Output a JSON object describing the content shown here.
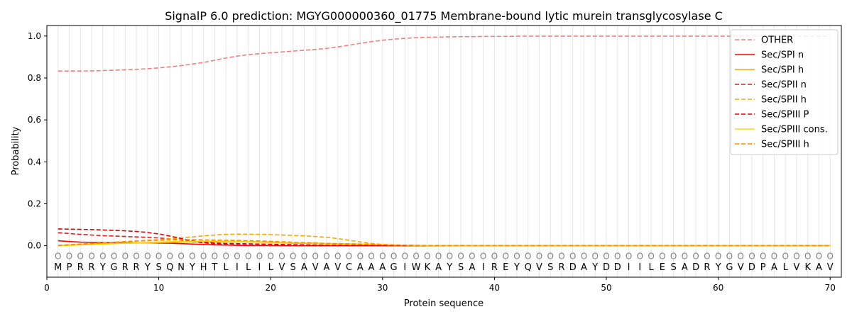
{
  "chart_data": {
    "type": "line",
    "title": "SignalP 6.0 prediction: MGYG000000360_01775 Membrane-bound lytic murein transglycosylase C",
    "xlabel": "Protein sequence",
    "ylabel": "Probability",
    "xlim": [
      0,
      71
    ],
    "ylim": [
      -0.15,
      1.05
    ],
    "xticks": [
      0,
      10,
      20,
      30,
      40,
      50,
      60,
      70
    ],
    "yticks": [
      0.0,
      0.2,
      0.4,
      0.6,
      0.8,
      1.0
    ],
    "grid": "vertical-per-residue",
    "legend_position": "top-right",
    "sequence": [
      "M",
      "P",
      "R",
      "R",
      "Y",
      "G",
      "R",
      "R",
      "Y",
      "S",
      "Q",
      "N",
      "Y",
      "H",
      "T",
      "L",
      "I",
      "L",
      "I",
      "L",
      "V",
      "S",
      "A",
      "V",
      "A",
      "V",
      "C",
      "A",
      "A",
      "A",
      "G",
      "I",
      "W",
      "K",
      "A",
      "Y",
      "S",
      "A",
      "I",
      "R",
      "E",
      "Y",
      "Q",
      "V",
      "S",
      "R",
      "D",
      "A",
      "Y",
      "D",
      "D",
      "I",
      "I",
      "L",
      "E",
      "S",
      "A",
      "D",
      "R",
      "Y",
      "G",
      "V",
      "D",
      "P",
      "A",
      "L",
      "V",
      "K",
      "A",
      "V"
    ],
    "region_labels": [
      "O",
      "O",
      "O",
      "O",
      "O",
      "O",
      "O",
      "O",
      "O",
      "O",
      "O",
      "O",
      "O",
      "O",
      "O",
      "O",
      "O",
      "O",
      "O",
      "O",
      "O",
      "O",
      "O",
      "O",
      "O",
      "O",
      "O",
      "O",
      "O",
      "O",
      "O",
      "O",
      "O",
      "O",
      "O",
      "O",
      "O",
      "O",
      "O",
      "O",
      "O",
      "O",
      "O",
      "O",
      "O",
      "O",
      "O",
      "O",
      "O",
      "O",
      "O",
      "O",
      "O",
      "O",
      "O",
      "O",
      "O",
      "O",
      "O",
      "O",
      "O",
      "O",
      "O",
      "O",
      "O",
      "O",
      "O",
      "O",
      "O",
      "O"
    ],
    "series": [
      {
        "name": "OTHER",
        "color": "#f08080",
        "dash": "dashed",
        "values": [
          0.833,
          0.833,
          0.833,
          0.834,
          0.835,
          0.837,
          0.839,
          0.841,
          0.844,
          0.848,
          0.853,
          0.859,
          0.866,
          0.874,
          0.884,
          0.895,
          0.904,
          0.911,
          0.916,
          0.92,
          0.924,
          0.928,
          0.932,
          0.936,
          0.941,
          0.948,
          0.956,
          0.965,
          0.973,
          0.98,
          0.985,
          0.989,
          0.992,
          0.994,
          0.995,
          0.996,
          0.997,
          0.997,
          0.998,
          0.998,
          0.998,
          0.999,
          0.999,
          0.999,
          0.999,
          0.999,
          0.999,
          0.999,
          0.999,
          0.999,
          0.999,
          0.999,
          0.999,
          0.999,
          0.999,
          0.999,
          0.999,
          0.999,
          0.999,
          0.999,
          0.999,
          0.999,
          0.999,
          0.999,
          0.999,
          0.999,
          0.999,
          0.999,
          0.999,
          0.999
        ]
      },
      {
        "name": "Sec/SPI n",
        "color": "#ff0000",
        "dash": "solid",
        "values": [
          0.024,
          0.02,
          0.017,
          0.016,
          0.015,
          0.015,
          0.015,
          0.014,
          0.014,
          0.013,
          0.012,
          0.01,
          0.008,
          0.006,
          0.004,
          0.003,
          0.002,
          0.001,
          0.001,
          0.001,
          0,
          0,
          0,
          0,
          0,
          0,
          0,
          0,
          0,
          0,
          0,
          0,
          0,
          0,
          0,
          0,
          0,
          0,
          0,
          0,
          0,
          0,
          0,
          0,
          0,
          0,
          0,
          0,
          0,
          0,
          0,
          0,
          0,
          0,
          0,
          0,
          0,
          0,
          0,
          0,
          0,
          0,
          0,
          0,
          0,
          0,
          0,
          0,
          0,
          0
        ]
      },
      {
        "name": "Sec/SPI h",
        "color": "#ffa500",
        "dash": "solid",
        "values": [
          0.001,
          0.003,
          0.005,
          0.007,
          0.009,
          0.011,
          0.012,
          0.013,
          0.014,
          0.015,
          0.016,
          0.017,
          0.018,
          0.019,
          0.019,
          0.019,
          0.019,
          0.018,
          0.017,
          0.016,
          0.014,
          0.012,
          0.011,
          0.01,
          0.009,
          0.008,
          0.007,
          0.006,
          0.005,
          0.004,
          0.003,
          0.002,
          0.001,
          0.001,
          0.001,
          0,
          0,
          0,
          0,
          0,
          0,
          0,
          0,
          0,
          0,
          0,
          0,
          0,
          0,
          0,
          0,
          0,
          0,
          0,
          0,
          0,
          0,
          0,
          0,
          0,
          0,
          0,
          0,
          0,
          0,
          0,
          0,
          0,
          0,
          0
        ]
      },
      {
        "name": "Sec/SPII n",
        "color": "#e41a1c",
        "dash": "dashed",
        "values": [
          0.062,
          0.058,
          0.054,
          0.051,
          0.048,
          0.046,
          0.044,
          0.042,
          0.04,
          0.037,
          0.033,
          0.027,
          0.02,
          0.014,
          0.009,
          0.006,
          0.004,
          0.003,
          0.002,
          0.001,
          0.001,
          0,
          0,
          0,
          0,
          0,
          0,
          0,
          0,
          0,
          0,
          0,
          0,
          0,
          0,
          0,
          0,
          0,
          0,
          0,
          0,
          0,
          0,
          0,
          0,
          0,
          0,
          0,
          0,
          0,
          0,
          0,
          0,
          0,
          0,
          0,
          0,
          0,
          0,
          0,
          0,
          0,
          0,
          0,
          0,
          0,
          0,
          0,
          0,
          0
        ]
      },
      {
        "name": "Sec/SPII h",
        "color": "#ffa500",
        "dash": "dashed",
        "values": [
          0.002,
          0.005,
          0.008,
          0.011,
          0.014,
          0.017,
          0.02,
          0.023,
          0.026,
          0.029,
          0.033,
          0.037,
          0.042,
          0.047,
          0.051,
          0.054,
          0.055,
          0.055,
          0.054,
          0.053,
          0.051,
          0.049,
          0.047,
          0.044,
          0.04,
          0.034,
          0.026,
          0.018,
          0.011,
          0.006,
          0.003,
          0.002,
          0.001,
          0,
          0,
          0,
          0,
          0,
          0,
          0,
          0,
          0,
          0,
          0,
          0,
          0,
          0,
          0,
          0,
          0,
          0,
          0,
          0,
          0,
          0,
          0,
          0,
          0,
          0,
          0,
          0,
          0,
          0,
          0,
          0,
          0,
          0,
          0,
          0,
          0
        ]
      },
      {
        "name": "Sec/SPIII P",
        "color": "#dd0000",
        "dash": "dashed",
        "values": [
          0.08,
          0.079,
          0.078,
          0.077,
          0.075,
          0.073,
          0.071,
          0.068,
          0.063,
          0.056,
          0.046,
          0.034,
          0.024,
          0.017,
          0.013,
          0.011,
          0.01,
          0.009,
          0.008,
          0.007,
          0.006,
          0.005,
          0.004,
          0.003,
          0.002,
          0.002,
          0.001,
          0.001,
          0,
          0,
          0,
          0,
          0,
          0,
          0,
          0,
          0,
          0,
          0,
          0,
          0,
          0,
          0,
          0,
          0,
          0,
          0,
          0,
          0,
          0,
          0,
          0,
          0,
          0,
          0,
          0,
          0,
          0,
          0,
          0,
          0,
          0,
          0,
          0,
          0,
          0,
          0,
          0,
          0,
          0
        ]
      },
      {
        "name": "Sec/SPIII cons.",
        "color": "#ffd700",
        "dash": "solid",
        "values": [
          0.001,
          0.002,
          0.004,
          0.006,
          0.008,
          0.01,
          0.012,
          0.014,
          0.016,
          0.018,
          0.019,
          0.02,
          0.021,
          0.022,
          0.022,
          0.022,
          0.021,
          0.02,
          0.019,
          0.018,
          0.016,
          0.015,
          0.013,
          0.012,
          0.011,
          0.01,
          0.009,
          0.008,
          0.007,
          0.005,
          0.004,
          0.003,
          0.002,
          0.001,
          0.001,
          0,
          0,
          0,
          0,
          0,
          0,
          0,
          0,
          0,
          0,
          0,
          0,
          0,
          0,
          0,
          0,
          0,
          0,
          0,
          0,
          0,
          0,
          0,
          0,
          0,
          0,
          0,
          0,
          0,
          0,
          0,
          0,
          0,
          0,
          0
        ]
      },
      {
        "name": "Sec/SPIII h",
        "color": "#ff8c00",
        "dash": "dashed",
        "values": [
          0.001,
          0.004,
          0.007,
          0.01,
          0.013,
          0.016,
          0.019,
          0.022,
          0.024,
          0.026,
          0.028,
          0.029,
          0.029,
          0.028,
          0.027,
          0.026,
          0.025,
          0.024,
          0.023,
          0.021,
          0.019,
          0.017,
          0.015,
          0.013,
          0.011,
          0.01,
          0.009,
          0.008,
          0.007,
          0.006,
          0.004,
          0.003,
          0.002,
          0.001,
          0.001,
          0,
          0,
          0,
          0,
          0,
          0,
          0,
          0,
          0,
          0,
          0,
          0,
          0,
          0,
          0,
          0,
          0,
          0,
          0,
          0,
          0,
          0,
          0,
          0,
          0,
          0,
          0,
          0,
          0,
          0,
          0,
          0,
          0,
          0,
          0
        ]
      }
    ]
  }
}
